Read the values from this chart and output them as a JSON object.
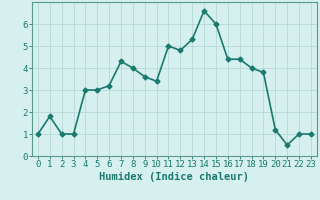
{
  "x": [
    0,
    1,
    2,
    3,
    4,
    5,
    6,
    7,
    8,
    9,
    10,
    11,
    12,
    13,
    14,
    15,
    16,
    17,
    18,
    19,
    20,
    21,
    22,
    23
  ],
  "y": [
    1.0,
    1.8,
    1.0,
    1.0,
    3.0,
    3.0,
    3.2,
    4.3,
    4.0,
    3.6,
    3.4,
    5.0,
    4.8,
    5.3,
    6.6,
    6.0,
    4.4,
    4.4,
    4.0,
    3.8,
    1.2,
    0.5,
    1.0,
    1.0
  ],
  "line_color": "#1a7a6e",
  "marker": "D",
  "marker_size": 2.5,
  "bg_color": "#d6efef",
  "grid_color": "#b8d8d8",
  "xlabel": "Humidex (Indice chaleur)",
  "ylabel": "",
  "xlim": [
    -0.5,
    23.5
  ],
  "ylim": [
    0,
    7
  ],
  "xtick_labels": [
    "0",
    "1",
    "2",
    "3",
    "4",
    "5",
    "6",
    "7",
    "8",
    "9",
    "10",
    "11",
    "12",
    "13",
    "14",
    "15",
    "16",
    "17",
    "18",
    "19",
    "20",
    "21",
    "22",
    "23"
  ],
  "ytick_vals": [
    0,
    1,
    2,
    3,
    4,
    5,
    6
  ],
  "tick_color": "#1a7a6e",
  "label_color": "#1a7a6e",
  "xlabel_fontsize": 7.5,
  "tick_fontsize": 6.5,
  "linewidth": 1.2,
  "spine_color": "#5a9a8a"
}
